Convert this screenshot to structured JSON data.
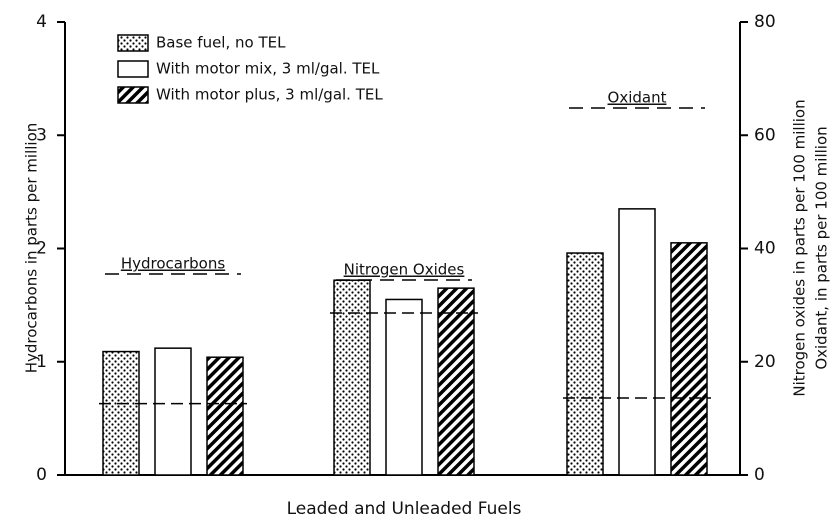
{
  "chart_data": {
    "type": "bar",
    "xlabel": "Leaded and Unleaded Fuels",
    "ylabel": "Hydrocarbons in parts per million",
    "y2labels": [
      "Nitrogen oxides in parts per 100 million",
      "Oxidant, in parts per 100 million"
    ],
    "categories": [
      "Hydrocarbons",
      "Nitrogen Oxides",
      "Oxidant"
    ],
    "series": [
      {
        "name": "Base fuel, no TEL",
        "color": "#000000",
        "pattern": "dots",
        "values": [
          1.09,
          1.72,
          1.96
        ]
      },
      {
        "name": "With motor mix, 3 ml/gal. TEL",
        "color": "#000000",
        "pattern": "none",
        "values": [
          1.12,
          1.55,
          2.35
        ]
      },
      {
        "name": "With motor plus, 3 ml/gal. TEL",
        "color": "#000000",
        "pattern": "hatch",
        "values": [
          1.04,
          1.65,
          2.05
        ]
      }
    ],
    "dashed_levels": [
      0.63,
      1.43,
      0.68
    ],
    "ylim": [
      0,
      4
    ],
    "yticks": [
      0,
      1,
      2,
      3,
      4
    ],
    "y2lim": [
      0,
      80
    ],
    "y2ticks": [
      0,
      20,
      40,
      60,
      80
    ],
    "legend": "upper left",
    "grid": false
  }
}
